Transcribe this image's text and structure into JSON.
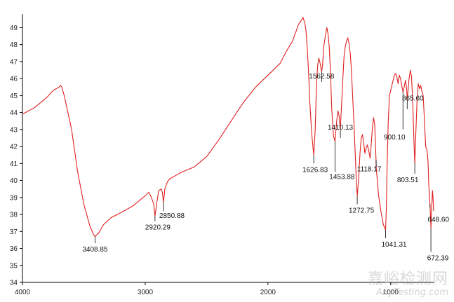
{
  "chart_data": {
    "type": "line",
    "title": "",
    "xlabel": "",
    "ylabel": "",
    "xlim": [
      4000,
      650
    ],
    "ylim": [
      34,
      49.8
    ],
    "x_ticks": [
      "4000",
      "3000",
      "2000",
      "1000"
    ],
    "x_tick_values": [
      4000,
      3000,
      2000,
      1000
    ],
    "y_ticks": [
      "34",
      "35",
      "36",
      "37",
      "38",
      "39",
      "40",
      "41",
      "42",
      "43",
      "44",
      "45",
      "46",
      "47",
      "48",
      "49"
    ],
    "y_tick_values": [
      34,
      35,
      36,
      37,
      38,
      39,
      40,
      41,
      42,
      43,
      44,
      45,
      46,
      47,
      48,
      49
    ],
    "series": [
      {
        "color": "#e02020",
        "points": [
          [
            4000,
            43.9
          ],
          [
            3900,
            44.3
          ],
          [
            3800,
            44.9
          ],
          [
            3750,
            45.3
          ],
          [
            3700,
            45.5
          ],
          [
            3690,
            45.6
          ],
          [
            3680,
            45.5
          ],
          [
            3660,
            45.0
          ],
          [
            3600,
            43.0
          ],
          [
            3550,
            40.5
          ],
          [
            3500,
            38.6
          ],
          [
            3450,
            37.3
          ],
          [
            3420,
            36.8
          ],
          [
            3408.85,
            36.7
          ],
          [
            3380,
            36.9
          ],
          [
            3340,
            37.4
          ],
          [
            3280,
            37.8
          ],
          [
            3200,
            38.1
          ],
          [
            3100,
            38.5
          ],
          [
            3050,
            38.8
          ],
          [
            3000,
            39.1
          ],
          [
            2970,
            39.3
          ],
          [
            2950,
            39.0
          ],
          [
            2930,
            38.6
          ],
          [
            2920.29,
            37.9
          ],
          [
            2905,
            38.7
          ],
          [
            2890,
            39.4
          ],
          [
            2870,
            39.5
          ],
          [
            2860,
            39.3
          ],
          [
            2850.88,
            38.7
          ],
          [
            2840,
            39.5
          ],
          [
            2820,
            39.9
          ],
          [
            2800,
            40.1
          ],
          [
            2750,
            40.3
          ],
          [
            2700,
            40.5
          ],
          [
            2600,
            40.8
          ],
          [
            2500,
            41.4
          ],
          [
            2400,
            42.4
          ],
          [
            2300,
            43.5
          ],
          [
            2200,
            44.6
          ],
          [
            2100,
            45.5
          ],
          [
            2000,
            46.2
          ],
          [
            1900,
            46.9
          ],
          [
            1850,
            47.6
          ],
          [
            1800,
            48.2
          ],
          [
            1770,
            48.8
          ],
          [
            1750,
            49.2
          ],
          [
            1730,
            49.4
          ],
          [
            1715,
            49.6
          ],
          [
            1700,
            49.3
          ],
          [
            1690,
            48.8
          ],
          [
            1680,
            47.8
          ],
          [
            1670,
            46.5
          ],
          [
            1660,
            44.8
          ],
          [
            1650,
            43.5
          ],
          [
            1640,
            42.5
          ],
          [
            1626.83,
            41.5
          ],
          [
            1615,
            43.0
          ],
          [
            1605,
            45.5
          ],
          [
            1595,
            46.8
          ],
          [
            1585,
            47.2
          ],
          [
            1575,
            46.9
          ],
          [
            1562.58,
            46.4
          ],
          [
            1555,
            46.8
          ],
          [
            1545,
            47.9
          ],
          [
            1530,
            48.6
          ],
          [
            1520,
            49.0
          ],
          [
            1510,
            48.6
          ],
          [
            1500,
            47.8
          ],
          [
            1490,
            46.2
          ],
          [
            1480,
            44.2
          ],
          [
            1470,
            43.0
          ],
          [
            1465,
            42.6
          ],
          [
            1453.88,
            42.3
          ],
          [
            1440,
            43.5
          ],
          [
            1430,
            44.1
          ],
          [
            1420,
            43.8
          ],
          [
            1410.13,
            43.0
          ],
          [
            1400,
            44.5
          ],
          [
            1390,
            46.0
          ],
          [
            1380,
            47.3
          ],
          [
            1370,
            47.9
          ],
          [
            1360,
            48.2
          ],
          [
            1350,
            48.4
          ],
          [
            1340,
            48.1
          ],
          [
            1330,
            47.5
          ],
          [
            1320,
            46.5
          ],
          [
            1310,
            45.0
          ],
          [
            1300,
            43.5
          ],
          [
            1290,
            41.8
          ],
          [
            1280,
            40.0
          ],
          [
            1272.75,
            39.1
          ],
          [
            1260,
            40.2
          ],
          [
            1250,
            41.6
          ],
          [
            1240,
            42.5
          ],
          [
            1230,
            42.7
          ],
          [
            1220,
            42.2
          ],
          [
            1210,
            41.6
          ],
          [
            1200,
            41.9
          ],
          [
            1190,
            42.1
          ],
          [
            1180,
            41.8
          ],
          [
            1168,
            41.3
          ],
          [
            1160,
            42.0
          ],
          [
            1150,
            43.0
          ],
          [
            1140,
            43.7
          ],
          [
            1130,
            43.3
          ],
          [
            1120,
            41.3
          ],
          [
            1118.17,
            40.8
          ],
          [
            1100,
            39.2
          ],
          [
            1080,
            38.2
          ],
          [
            1060,
            37.4
          ],
          [
            1041.31,
            37.1
          ],
          [
            1035,
            38.5
          ],
          [
            1030,
            40.5
          ],
          [
            1020,
            43.5
          ],
          [
            1010,
            45.0
          ],
          [
            1000,
            45.3
          ],
          [
            990,
            45.6
          ],
          [
            980,
            45.9
          ],
          [
            970,
            46.2
          ],
          [
            960,
            46.3
          ],
          [
            950,
            46.1
          ],
          [
            940,
            45.7
          ],
          [
            930,
            46.2
          ],
          [
            920,
            46.0
          ],
          [
            910,
            45.6
          ],
          [
            900.1,
            45.2
          ],
          [
            890,
            45.5
          ],
          [
            880,
            45.9
          ],
          [
            870,
            45.4
          ],
          [
            865.6,
            44.8
          ],
          [
            860,
            45.2
          ],
          [
            850,
            46.0
          ],
          [
            840,
            46.5
          ],
          [
            830,
            46.1
          ],
          [
            820,
            44.5
          ],
          [
            810,
            42.2
          ],
          [
            803.51,
            41.0
          ],
          [
            795,
            42.8
          ],
          [
            785,
            44.8
          ],
          [
            775,
            45.7
          ],
          [
            765,
            45.4
          ],
          [
            755,
            45.6
          ],
          [
            745,
            45.2
          ],
          [
            735,
            45.0
          ],
          [
            725,
            43.5
          ],
          [
            715,
            42.0
          ],
          [
            705,
            41.8
          ],
          [
            700,
            41.5
          ],
          [
            695,
            41.0
          ],
          [
            690,
            39.8
          ],
          [
            680,
            38.6
          ],
          [
            672.39,
            37.2
          ],
          [
            665,
            38.5
          ],
          [
            660,
            39.4
          ],
          [
            655,
            39.0
          ],
          [
            650,
            38.2
          ]
        ]
      }
    ],
    "annotations": [
      {
        "text": "3408.85",
        "x": 3408.85,
        "y": 36.7,
        "leader_to": 36.3
      },
      {
        "text": "2920.29",
        "x": 2920.29,
        "y": 37.9,
        "leader_to": 37.6
      },
      {
        "text": "2850.88",
        "x": 2850.88,
        "y": 38.7,
        "leader_to": 38.2
      },
      {
        "text": "1626.83",
        "x": 1626.83,
        "y": 41.5,
        "leader_to": 41.0
      },
      {
        "text": "1562.58",
        "x": 1562.58,
        "y": 46.4,
        "leader_to": 45.8
      },
      {
        "text": "1453.88",
        "x": 1453.88,
        "y": 42.3,
        "leader_to": 40.5
      },
      {
        "text": "1410.13",
        "x": 1410.13,
        "y": 43.0,
        "leader_to": 42.5
      },
      {
        "text": "1272.75",
        "x": 1272.75,
        "y": 39.1,
        "leader_to": 38.6
      },
      {
        "text": "1118.17",
        "x": 1118.17,
        "y": 40.8,
        "leader_to": 41.2
      },
      {
        "text": "1041.31",
        "x": 1041.31,
        "y": 37.1,
        "leader_to": 36.6
      },
      {
        "text": "900.10",
        "x": 900.1,
        "y": 45.2,
        "leader_to": 43.0
      },
      {
        "text": "865.60",
        "x": 865.6,
        "y": 44.8,
        "leader_to": 44.2
      },
      {
        "text": "803.51",
        "x": 803.51,
        "y": 41.0,
        "leader_to": 40.4
      },
      {
        "text": "648.60",
        "x": 680,
        "y": 38.6,
        "leader_to": 38.4
      },
      {
        "text": "672.39",
        "x": 672.39,
        "y": 37.2,
        "leader_to": 35.8
      }
    ],
    "grid": false,
    "legend": "none"
  },
  "watermark": {
    "cn": "嘉峪检测网",
    "en": "AnyTesting.com"
  }
}
